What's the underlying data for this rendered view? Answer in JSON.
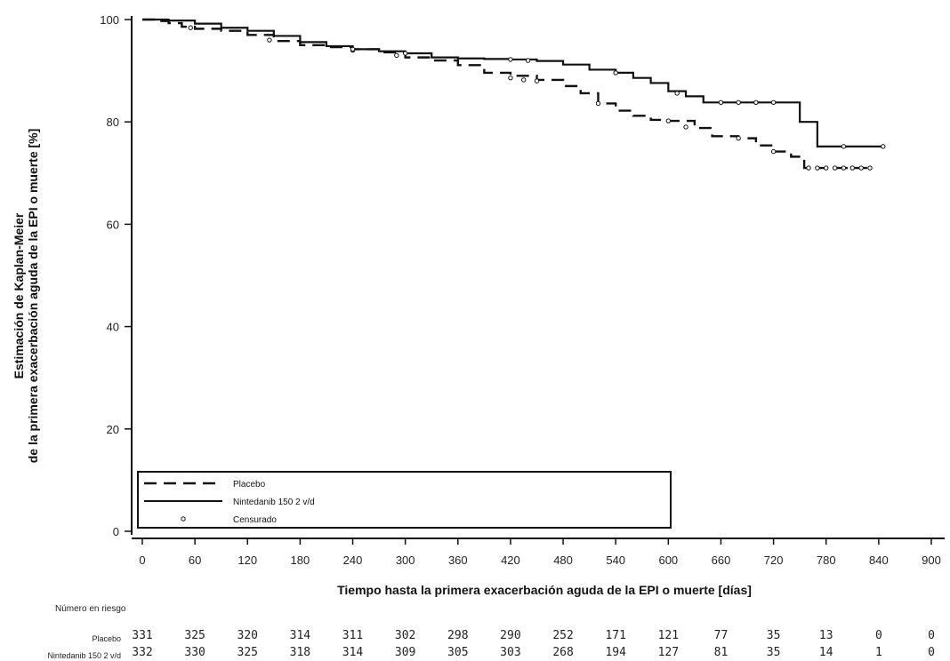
{
  "chart_data": {
    "type": "line",
    "xlabel": "Tiempo hasta la primera exacerbación aguda de la EPI o muerte [días]",
    "ylabel_line1": "Estimación de Kaplan-Meier",
    "ylabel_line2": "de la primera exacerbación aguda de la EPI o muerte [%]",
    "xlim": [
      0,
      900
    ],
    "ylim": [
      0,
      100
    ],
    "x_ticks": [
      0,
      60,
      120,
      180,
      240,
      300,
      360,
      420,
      480,
      540,
      600,
      660,
      720,
      780,
      840,
      900
    ],
    "y_ticks": [
      0,
      20,
      40,
      60,
      80,
      100
    ],
    "step": true,
    "series": [
      {
        "name": "Placebo",
        "style": "dashed",
        "color": "#111111",
        "points": [
          [
            0,
            100
          ],
          [
            15,
            99.7
          ],
          [
            30,
            99.3
          ],
          [
            45,
            98.6
          ],
          [
            60,
            98.2
          ],
          [
            90,
            97.8
          ],
          [
            120,
            97.0
          ],
          [
            150,
            95.8
          ],
          [
            180,
            95.0
          ],
          [
            210,
            94.6
          ],
          [
            240,
            94.2
          ],
          [
            270,
            93.6
          ],
          [
            300,
            92.6
          ],
          [
            330,
            92.0
          ],
          [
            360,
            91.1
          ],
          [
            390,
            89.6
          ],
          [
            420,
            89.0
          ],
          [
            450,
            88.2
          ],
          [
            480,
            87.0
          ],
          [
            500,
            85.6
          ],
          [
            520,
            83.6
          ],
          [
            540,
            82.2
          ],
          [
            560,
            81.2
          ],
          [
            580,
            80.4
          ],
          [
            600,
            80.2
          ],
          [
            630,
            78.8
          ],
          [
            650,
            77.2
          ],
          [
            680,
            76.8
          ],
          [
            700,
            75.4
          ],
          [
            720,
            74.2
          ],
          [
            740,
            73.2
          ],
          [
            755,
            71.0
          ],
          [
            830,
            71.0
          ]
        ],
        "censored": [
          [
            55,
            98.4
          ],
          [
            145,
            96.0
          ],
          [
            240,
            94.0
          ],
          [
            290,
            93.0
          ],
          [
            420,
            88.6
          ],
          [
            435,
            88.2
          ],
          [
            450,
            88.0
          ],
          [
            520,
            83.6
          ],
          [
            600,
            80.2
          ],
          [
            620,
            79.0
          ],
          [
            680,
            76.8
          ],
          [
            720,
            74.2
          ],
          [
            760,
            71.0
          ],
          [
            770,
            71.0
          ],
          [
            780,
            71.0
          ],
          [
            790,
            71.0
          ],
          [
            800,
            71.0
          ],
          [
            810,
            71.0
          ],
          [
            820,
            71.0
          ],
          [
            830,
            71.0
          ]
        ]
      },
      {
        "name": "Nintedanib 150 2 v/d",
        "style": "solid",
        "color": "#111111",
        "points": [
          [
            0,
            100
          ],
          [
            30,
            99.8
          ],
          [
            60,
            99.2
          ],
          [
            90,
            98.4
          ],
          [
            120,
            97.8
          ],
          [
            150,
            96.8
          ],
          [
            180,
            95.6
          ],
          [
            210,
            94.8
          ],
          [
            240,
            94.2
          ],
          [
            270,
            93.8
          ],
          [
            300,
            93.4
          ],
          [
            330,
            92.6
          ],
          [
            360,
            92.4
          ],
          [
            390,
            92.3
          ],
          [
            420,
            92.2
          ],
          [
            450,
            91.9
          ],
          [
            480,
            91.2
          ],
          [
            510,
            90.2
          ],
          [
            540,
            89.6
          ],
          [
            560,
            88.6
          ],
          [
            580,
            87.6
          ],
          [
            600,
            86.0
          ],
          [
            620,
            85.0
          ],
          [
            640,
            83.8
          ],
          [
            740,
            83.8
          ],
          [
            750,
            80.0
          ],
          [
            770,
            75.2
          ],
          [
            845,
            75.2
          ]
        ],
        "censored": [
          [
            240,
            94.2
          ],
          [
            300,
            93.4
          ],
          [
            420,
            92.2
          ],
          [
            440,
            92.0
          ],
          [
            540,
            89.6
          ],
          [
            610,
            85.6
          ],
          [
            660,
            83.8
          ],
          [
            680,
            83.8
          ],
          [
            700,
            83.8
          ],
          [
            720,
            83.8
          ],
          [
            800,
            75.2
          ],
          [
            845,
            75.2
          ]
        ]
      }
    ],
    "legend": {
      "position": "bottom-left",
      "entries": [
        {
          "label": "Placebo",
          "marker": "dashed-line"
        },
        {
          "label": "Nintedanib 150 2 v/d",
          "marker": "solid-line"
        },
        {
          "label": "Censurado",
          "marker": "open-circle"
        }
      ]
    },
    "risk_table": {
      "title": "Número en riesgo",
      "rows": [
        {
          "label": "Placebo",
          "values": [
            331,
            325,
            320,
            314,
            311,
            302,
            298,
            290,
            252,
            171,
            121,
            77,
            35,
            13,
            0,
            0
          ]
        },
        {
          "label": "Nintedanib 150 2 v/d",
          "values": [
            332,
            330,
            325,
            318,
            314,
            309,
            305,
            303,
            268,
            194,
            127,
            81,
            35,
            14,
            1,
            0
          ]
        }
      ]
    }
  }
}
